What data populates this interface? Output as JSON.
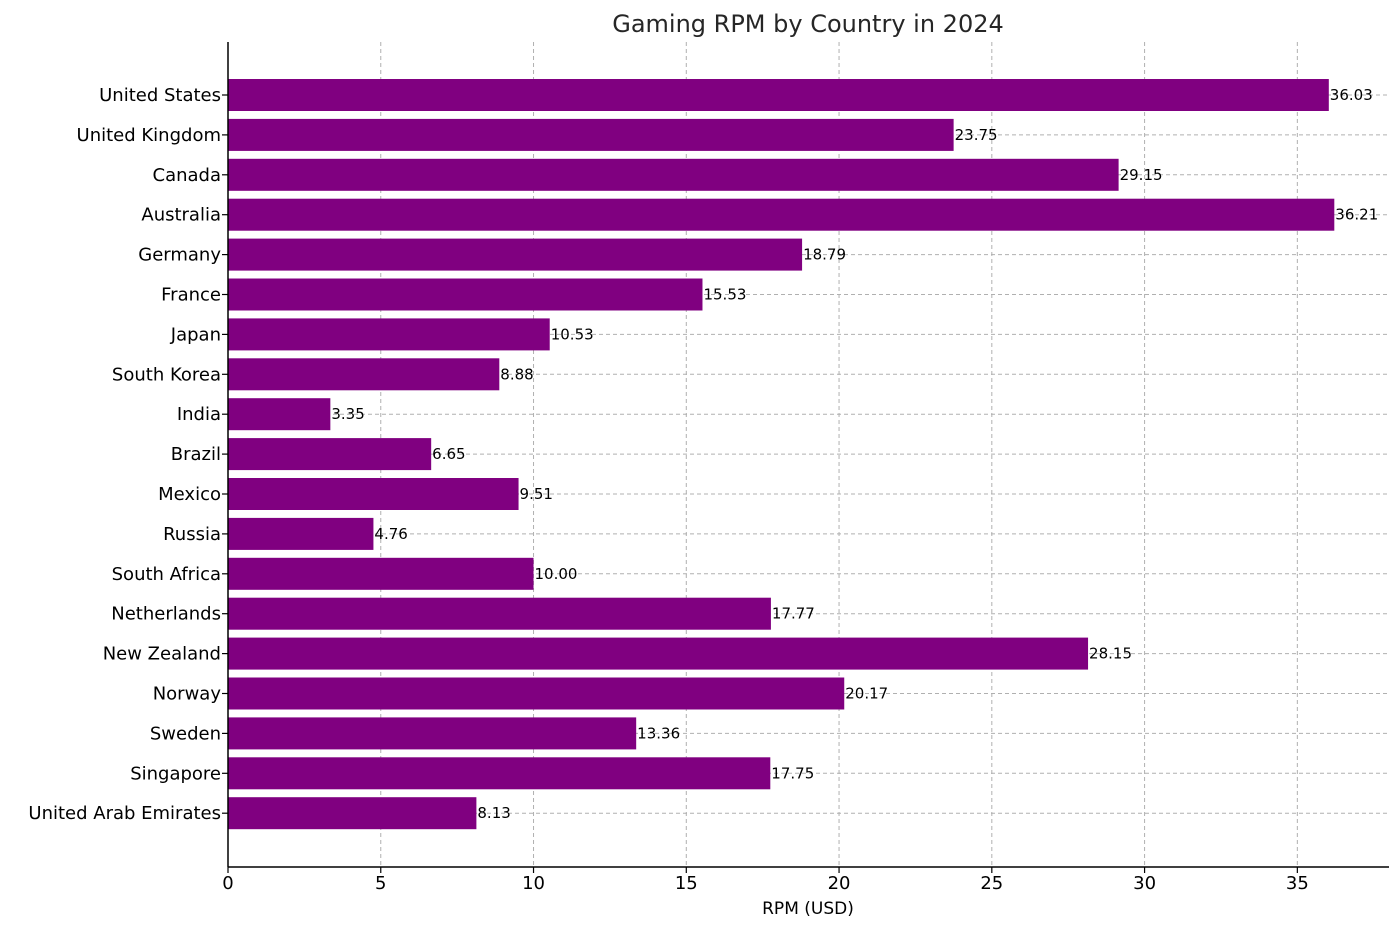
{
  "chart_data": {
    "type": "bar",
    "orientation": "horizontal",
    "title": "Gaming RPM by Country in 2024",
    "xlabel": "RPM (USD)",
    "ylabel": "",
    "xlim": [
      0,
      38
    ],
    "xticks": [
      0,
      5,
      10,
      15,
      20,
      25,
      30,
      35
    ],
    "grid": true,
    "bar_color": "#800080",
    "categories": [
      "United States",
      "United Kingdom",
      "Canada",
      "Australia",
      "Germany",
      "France",
      "Japan",
      "South Korea",
      "India",
      "Brazil",
      "Mexico",
      "Russia",
      "South Africa",
      "Netherlands",
      "New Zealand",
      "Norway",
      "Sweden",
      "Singapore",
      "United Arab Emirates"
    ],
    "values": [
      36.03,
      23.75,
      29.15,
      36.21,
      18.79,
      15.53,
      10.53,
      8.88,
      3.35,
      6.65,
      9.51,
      4.76,
      10.0,
      17.77,
      28.15,
      20.17,
      13.36,
      17.75,
      8.13
    ],
    "data_labels": [
      "36.03",
      "23.75",
      "29.15",
      "36.21",
      "18.79",
      "15.53",
      "10.53",
      "8.88",
      "3.35",
      "6.65",
      "9.51",
      "4.76",
      "10.00",
      "17.77",
      "28.15",
      "20.17",
      "13.36",
      "17.75",
      "8.13"
    ]
  }
}
